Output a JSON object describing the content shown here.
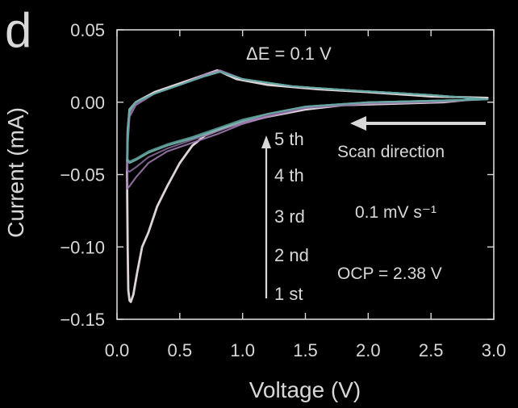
{
  "panel_label": "d",
  "chart_data": {
    "type": "line",
    "title": "",
    "xlabel": "Voltage (V)",
    "ylabel": "Current (mA)",
    "xlim": [
      0.0,
      3.0
    ],
    "ylim": [
      -0.15,
      0.05
    ],
    "xticks": [
      "0.0",
      "0.5",
      "1.0",
      "1.5",
      "2.0",
      "2.5",
      "3.0"
    ],
    "yticks": [
      "0.05",
      "0.00",
      "−0.05",
      "−0.10",
      "−0.15"
    ],
    "x_tick_values": [
      0.0,
      0.5,
      1.0,
      1.5,
      2.0,
      2.5,
      3.0
    ],
    "y_tick_values": [
      0.05,
      0.0,
      -0.05,
      -0.1,
      -0.15
    ],
    "grid": false,
    "legend": {
      "placement": "center",
      "entries": [
        "5 th",
        "4 th",
        "3 rd",
        "2 nd",
        "1 st"
      ],
      "arrow": "up"
    },
    "annotations": {
      "delta_e": "ΔE = 0.1 V",
      "scan_direction": "Scan direction",
      "scan_rate": "0.1 mV s⁻¹",
      "ocp": "OCP = 2.38 V"
    },
    "series": [
      {
        "name": "1 st",
        "color": "#e9dfe4",
        "values": [
          [
            2.95,
            0.003
          ],
          [
            2.6,
            0.0
          ],
          [
            2.2,
            -0.001
          ],
          [
            1.8,
            -0.002
          ],
          [
            1.5,
            -0.005
          ],
          [
            1.2,
            -0.01
          ],
          [
            1.0,
            -0.014
          ],
          [
            0.85,
            -0.018
          ],
          [
            0.7,
            -0.023
          ],
          [
            0.6,
            -0.03
          ],
          [
            0.5,
            -0.042
          ],
          [
            0.4,
            -0.058
          ],
          [
            0.32,
            -0.072
          ],
          [
            0.25,
            -0.09
          ],
          [
            0.2,
            -0.1
          ],
          [
            0.16,
            -0.118
          ],
          [
            0.13,
            -0.133
          ],
          [
            0.11,
            -0.138
          ],
          [
            0.1,
            -0.137
          ],
          [
            0.09,
            -0.13
          ],
          [
            0.085,
            -0.1
          ],
          [
            0.08,
            -0.05
          ],
          [
            0.085,
            -0.02
          ],
          [
            0.1,
            -0.005
          ],
          [
            0.15,
            0.0
          ],
          [
            0.3,
            0.007
          ],
          [
            0.5,
            0.013
          ],
          [
            0.7,
            0.019
          ],
          [
            0.8,
            0.022
          ],
          [
            0.95,
            0.016
          ],
          [
            1.2,
            0.012
          ],
          [
            1.6,
            0.009
          ],
          [
            2.0,
            0.007
          ],
          [
            2.5,
            0.004
          ],
          [
            2.95,
            0.003
          ]
        ]
      },
      {
        "name": "2 nd",
        "color": "#a57fb5",
        "values": [
          [
            2.95,
            0.002
          ],
          [
            2.5,
            0.001
          ],
          [
            2.0,
            0.0
          ],
          [
            1.5,
            -0.004
          ],
          [
            1.2,
            -0.01
          ],
          [
            1.0,
            -0.015
          ],
          [
            0.8,
            -0.022
          ],
          [
            0.6,
            -0.028
          ],
          [
            0.4,
            -0.034
          ],
          [
            0.25,
            -0.042
          ],
          [
            0.15,
            -0.052
          ],
          [
            0.1,
            -0.058
          ],
          [
            0.08,
            -0.06
          ],
          [
            0.085,
            -0.03
          ],
          [
            0.1,
            -0.01
          ],
          [
            0.15,
            -0.002
          ],
          [
            0.3,
            0.006
          ],
          [
            0.5,
            0.012
          ],
          [
            0.7,
            0.019
          ],
          [
            0.82,
            0.022
          ],
          [
            1.0,
            0.016
          ],
          [
            1.4,
            0.011
          ],
          [
            1.9,
            0.008
          ],
          [
            2.5,
            0.005
          ],
          [
            2.95,
            0.002
          ]
        ]
      },
      {
        "name": "3 rd",
        "color": "#8a6da0",
        "values": [
          [
            2.95,
            0.002
          ],
          [
            2.5,
            0.0
          ],
          [
            2.0,
            -0.001
          ],
          [
            1.5,
            -0.004
          ],
          [
            1.2,
            -0.009
          ],
          [
            1.0,
            -0.014
          ],
          [
            0.8,
            -0.02
          ],
          [
            0.6,
            -0.026
          ],
          [
            0.4,
            -0.032
          ],
          [
            0.25,
            -0.038
          ],
          [
            0.15,
            -0.045
          ],
          [
            0.1,
            -0.048
          ],
          [
            0.08,
            -0.047
          ],
          [
            0.085,
            -0.025
          ],
          [
            0.1,
            -0.008
          ],
          [
            0.15,
            -0.001
          ],
          [
            0.3,
            0.006
          ],
          [
            0.5,
            0.012
          ],
          [
            0.7,
            0.018
          ],
          [
            0.82,
            0.021
          ],
          [
            1.0,
            0.016
          ],
          [
            1.4,
            0.011
          ],
          [
            1.9,
            0.008
          ],
          [
            2.5,
            0.005
          ],
          [
            2.95,
            0.002
          ]
        ]
      },
      {
        "name": "4 th",
        "color": "#7fc0b8",
        "values": [
          [
            2.95,
            0.002
          ],
          [
            2.5,
            0.001
          ],
          [
            2.0,
            0.0
          ],
          [
            1.5,
            -0.003
          ],
          [
            1.2,
            -0.008
          ],
          [
            1.0,
            -0.013
          ],
          [
            0.8,
            -0.019
          ],
          [
            0.6,
            -0.025
          ],
          [
            0.4,
            -0.03
          ],
          [
            0.25,
            -0.035
          ],
          [
            0.15,
            -0.04
          ],
          [
            0.1,
            -0.042
          ],
          [
            0.08,
            -0.04
          ],
          [
            0.085,
            -0.02
          ],
          [
            0.1,
            -0.006
          ],
          [
            0.15,
            0.0
          ],
          [
            0.3,
            0.006
          ],
          [
            0.5,
            0.012
          ],
          [
            0.7,
            0.018
          ],
          [
            0.82,
            0.021
          ],
          [
            1.0,
            0.016
          ],
          [
            1.4,
            0.011
          ],
          [
            1.9,
            0.008
          ],
          [
            2.5,
            0.005
          ],
          [
            2.95,
            0.002
          ]
        ]
      },
      {
        "name": "5 th",
        "color": "#5fa7a0",
        "values": [
          [
            2.95,
            0.002
          ],
          [
            2.5,
            0.001
          ],
          [
            2.0,
            0.0
          ],
          [
            1.5,
            -0.003
          ],
          [
            1.2,
            -0.008
          ],
          [
            1.0,
            -0.012
          ],
          [
            0.8,
            -0.018
          ],
          [
            0.6,
            -0.024
          ],
          [
            0.4,
            -0.029
          ],
          [
            0.25,
            -0.034
          ],
          [
            0.15,
            -0.039
          ],
          [
            0.1,
            -0.041
          ],
          [
            0.08,
            -0.039
          ],
          [
            0.085,
            -0.018
          ],
          [
            0.1,
            -0.005
          ],
          [
            0.15,
            0.0
          ],
          [
            0.3,
            0.006
          ],
          [
            0.5,
            0.012
          ],
          [
            0.7,
            0.018
          ],
          [
            0.82,
            0.021
          ],
          [
            1.0,
            0.016
          ],
          [
            1.4,
            0.011
          ],
          [
            1.9,
            0.008
          ],
          [
            2.5,
            0.005
          ],
          [
            2.95,
            0.002
          ]
        ]
      }
    ]
  }
}
